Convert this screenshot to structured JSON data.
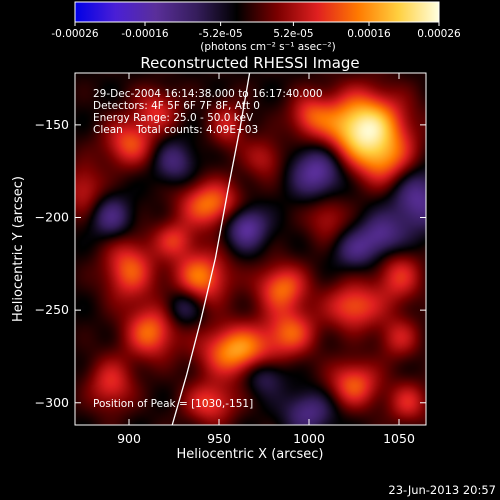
{
  "colorbar": {
    "tick_labels": [
      "-0.00026",
      "-0.00016",
      "-5.2e-05",
      "5.2e-05",
      "0.00016",
      "0.00026"
    ],
    "range": [
      -0.00026,
      0.00026
    ],
    "unit_label": "(photons cm⁻² s⁻¹ asec⁻²)",
    "colors": [
      "#0000e6",
      "#4a1fd6",
      "#5a2f9a",
      "#351d5c",
      "#000000",
      "#7a0000",
      "#e02020",
      "#ff7a00",
      "#ffd040",
      "#ffffe0"
    ]
  },
  "chart_data": {
    "type": "heatmap",
    "title": "Reconstructed RHESSI Image",
    "xlabel": "Heliocentric X (arcsec)",
    "ylabel": "Heliocentric Y (arcsec)",
    "xlim": [
      870,
      1065
    ],
    "ylim": [
      -312,
      -122
    ],
    "x_ticks": [
      900,
      950,
      1000,
      1050
    ],
    "y_ticks": [
      -150,
      -200,
      -250,
      -300
    ],
    "annotations": [
      "29-Dec-2004 16:14:38.000 to 16:17:40.000",
      "Detectors: 4F 5F 6F 7F 8F, Att 0",
      "Energy Range: 25.0 - 50.0 keV",
      "Clean    Total counts: 4.09E+03"
    ],
    "peak_label": "Position of Peak = [1030,-151]",
    "peak": {
      "x": 1030,
      "y": -151,
      "value": 0.00026
    },
    "limb_curve": [
      [
        924,
        -312
      ],
      [
        932,
        -285
      ],
      [
        940,
        -255
      ],
      [
        948,
        -222
      ],
      [
        955,
        -185
      ],
      [
        962,
        -150
      ],
      [
        967,
        -122
      ]
    ],
    "sources": [
      {
        "x": 1030,
        "y": -151,
        "sx": 16,
        "sy": 13,
        "amp": 0.00026
      },
      {
        "x": 1042,
        "y": -170,
        "sx": 12,
        "sy": 10,
        "amp": 0.00012
      },
      {
        "x": 945,
        "y": -193,
        "sx": 12,
        "sy": 9,
        "amp": 0.00016
      },
      {
        "x": 900,
        "y": -160,
        "sx": 10,
        "sy": 9,
        "amp": 0.00013
      },
      {
        "x": 915,
        "y": -142,
        "sx": 9,
        "sy": 8,
        "amp": 0.0001
      },
      {
        "x": 955,
        "y": -150,
        "sx": 7,
        "sy": 9,
        "amp": 9e-05
      },
      {
        "x": 1000,
        "y": -145,
        "sx": 8,
        "sy": 8,
        "amp": 0.0001
      },
      {
        "x": 975,
        "y": -168,
        "sx": 8,
        "sy": 8,
        "amp": 8e-05
      },
      {
        "x": 940,
        "y": -232,
        "sx": 11,
        "sy": 10,
        "amp": 0.00016
      },
      {
        "x": 985,
        "y": -238,
        "sx": 10,
        "sy": 9,
        "amp": 0.00015
      },
      {
        "x": 900,
        "y": -228,
        "sx": 10,
        "sy": 12,
        "amp": 0.00014
      },
      {
        "x": 925,
        "y": -212,
        "sx": 8,
        "sy": 7,
        "amp": 0.0001
      },
      {
        "x": 1025,
        "y": -248,
        "sx": 11,
        "sy": 9,
        "amp": 0.00014
      },
      {
        "x": 1050,
        "y": -232,
        "sx": 9,
        "sy": 10,
        "amp": 0.00011
      },
      {
        "x": 960,
        "y": -272,
        "sx": 14,
        "sy": 10,
        "amp": 0.00019
      },
      {
        "x": 990,
        "y": -262,
        "sx": 10,
        "sy": 9,
        "amp": 0.00013
      },
      {
        "x": 912,
        "y": -262,
        "sx": 10,
        "sy": 10,
        "amp": 0.00015
      },
      {
        "x": 890,
        "y": -290,
        "sx": 9,
        "sy": 10,
        "amp": 0.00011
      },
      {
        "x": 945,
        "y": -300,
        "sx": 10,
        "sy": 8,
        "amp": 0.00012
      },
      {
        "x": 1025,
        "y": -290,
        "sx": 10,
        "sy": 9,
        "amp": 0.00014
      },
      {
        "x": 1055,
        "y": -300,
        "sx": 8,
        "sy": 8,
        "amp": 0.0001
      },
      {
        "x": 1050,
        "y": -265,
        "sx": 8,
        "sy": 8,
        "amp": 9e-05
      },
      {
        "x": 1010,
        "y": -200,
        "sx": 8,
        "sy": 9,
        "amp": 8e-05
      },
      {
        "x": 875,
        "y": -185,
        "sx": 8,
        "sy": 10,
        "amp": 9e-05
      },
      {
        "x": 965,
        "y": -205,
        "sx": 8,
        "sy": 8,
        "amp": -0.00014
      },
      {
        "x": 1005,
        "y": -175,
        "sx": 10,
        "sy": 10,
        "amp": -0.00014
      },
      {
        "x": 1060,
        "y": -190,
        "sx": 10,
        "sy": 12,
        "amp": -0.00012
      },
      {
        "x": 890,
        "y": -200,
        "sx": 8,
        "sy": 8,
        "amp": -0.0001
      },
      {
        "x": 1040,
        "y": -210,
        "sx": 9,
        "sy": 8,
        "amp": -0.00011
      },
      {
        "x": 975,
        "y": -285,
        "sx": 8,
        "sy": 7,
        "amp": -9e-05
      },
      {
        "x": 1000,
        "y": -305,
        "sx": 10,
        "sy": 8,
        "amp": -0.0001
      },
      {
        "x": 930,
        "y": -248,
        "sx": 7,
        "sy": 7,
        "amp": -8e-05
      },
      {
        "x": 925,
        "y": -170,
        "sx": 8,
        "sy": 8,
        "amp": -9e-05
      },
      {
        "x": 1025,
        "y": -218,
        "sx": 8,
        "sy": 7,
        "amp": -8e-05
      }
    ],
    "background_level": -2e-05
  },
  "footer": {
    "date": "23-Jun-2013 20:57"
  }
}
